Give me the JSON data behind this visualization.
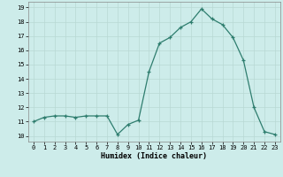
{
  "x": [
    0,
    1,
    2,
    3,
    4,
    5,
    6,
    7,
    8,
    9,
    10,
    11,
    12,
    13,
    14,
    15,
    16,
    17,
    18,
    19,
    20,
    21,
    22,
    23
  ],
  "y": [
    11.0,
    11.3,
    11.4,
    11.4,
    11.3,
    11.4,
    11.4,
    11.4,
    10.1,
    10.8,
    11.1,
    14.5,
    16.5,
    16.9,
    17.6,
    18.0,
    18.9,
    18.2,
    17.8,
    16.9,
    15.3,
    12.0,
    10.3,
    10.1
  ],
  "xlabel": "Humidex (Indice chaleur)",
  "xlim": [
    -0.5,
    23.5
  ],
  "ylim": [
    9.6,
    19.4
  ],
  "yticks": [
    10,
    11,
    12,
    13,
    14,
    15,
    16,
    17,
    18,
    19
  ],
  "xticks": [
    0,
    1,
    2,
    3,
    4,
    5,
    6,
    7,
    8,
    9,
    10,
    11,
    12,
    13,
    14,
    15,
    16,
    17,
    18,
    19,
    20,
    21,
    22,
    23
  ],
  "line_color": "#2e7d6e",
  "bg_color": "#cdecea",
  "grid_color": "#b8d8d4",
  "font_family": "monospace"
}
